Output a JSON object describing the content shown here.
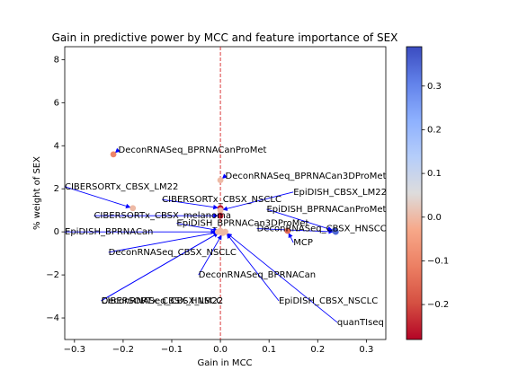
{
  "chart_data": {
    "type": "scatter",
    "title": "Gain in predictive power by MCC and feature importance of SEX",
    "xlabel": "Gain in MCC",
    "ylabel": "% weight of SEX",
    "xlim": [
      -0.32,
      0.34
    ],
    "ylim": [
      -5.0,
      8.6
    ],
    "xticks": [
      -0.3,
      -0.2,
      -0.1,
      0.0,
      0.1,
      0.2,
      0.3
    ],
    "xtick_labels": [
      "−0.3",
      "−0.2",
      "−0.1",
      "0.0",
      "0.1",
      "0.2",
      "0.3"
    ],
    "yticks": [
      -4,
      -2,
      0,
      2,
      4,
      6,
      8
    ],
    "ytick_labels": [
      "−4",
      "−2",
      "0",
      "2",
      "4",
      "6",
      "8"
    ],
    "reference_line": {
      "x": 0.0,
      "style": "dashed",
      "color": "#d62728"
    },
    "grid": false,
    "colorbar": {
      "colormap": "coolwarm_r",
      "range": [
        -0.28,
        0.39
      ],
      "ticks": [
        -0.2,
        -0.1,
        0.0,
        0.1,
        0.2,
        0.3
      ],
      "tick_labels": [
        "−0.2",
        "−0.1",
        "0.0",
        "0.1",
        "0.2",
        "0.3"
      ]
    },
    "points": [
      {
        "label": "DeconRNASeq_BPRNACanProMet",
        "x": -0.22,
        "y": 3.6,
        "c": -0.1,
        "tx": -0.21,
        "ty": 3.8
      },
      {
        "label": "DeconRNASeq_BPRNACan3DProMet",
        "x": 0.0,
        "y": 2.4,
        "c": 0.0,
        "tx": 0.01,
        "ty": 2.6
      },
      {
        "label": "CIBERSORTx_CBSX_LM22",
        "x": -0.18,
        "y": 1.1,
        "c": 0.0,
        "tx": -0.32,
        "ty": 2.1
      },
      {
        "label": "CIBERSORTx_CBSX_NSCLC",
        "x": 0.0,
        "y": 1.1,
        "c": -0.27,
        "tx": -0.12,
        "ty": 1.5
      },
      {
        "label": "EpiDISH_CBSX_LM22",
        "x": 0.0,
        "y": 1.0,
        "c": 0.0,
        "tx": 0.15,
        "ty": 1.85
      },
      {
        "label": "CIBERSORTx_CBSX_melanoma",
        "x": 0.0,
        "y": 0.75,
        "c": -0.25,
        "tx": -0.26,
        "ty": 0.75
      },
      {
        "label": "EpiDISH_BPRNACanProMet",
        "x": 0.235,
        "y": 0.05,
        "c": 0.39,
        "tx": 0.095,
        "ty": 1.05
      },
      {
        "label": "EpiDISH_BPRNACan3DProMet",
        "x": 0.0,
        "y": 0.05,
        "c": 0.0,
        "tx": -0.09,
        "ty": 0.4
      },
      {
        "label": "EpiDISH_BPRNACan",
        "x": -0.005,
        "y": 0.0,
        "c": 0.0,
        "tx": -0.32,
        "ty": 0.0
      },
      {
        "label": "DeconRNASeq_CBSX_HNSCC",
        "x": 0.237,
        "y": 0.0,
        "c": 0.35,
        "tx": 0.075,
        "ty": 0.15
      },
      {
        "label": "MCP",
        "x": 0.138,
        "y": 0.05,
        "c": -0.15,
        "tx": 0.15,
        "ty": -0.5
      },
      {
        "label": "DeconRNASeq_CBSX_NSCLC",
        "x": 0.0,
        "y": 0.0,
        "c": 0.0,
        "tx": -0.23,
        "ty": -0.95
      },
      {
        "label": "DeconRNASeq_BPRNACan",
        "x": 0.005,
        "y": -0.05,
        "c": 0.0,
        "tx": -0.045,
        "ty": -2.0
      },
      {
        "label": "CIBERSORTx_CBSX_HNSCC",
        "x": 0.0,
        "y": 0.0,
        "c": 0.0,
        "tx": -0.245,
        "ty": -3.2
      },
      {
        "label": "DeconRNASeq_CBSX_LM22",
        "x": 0.0,
        "y": 0.0,
        "c": 0.0,
        "tx": -0.245,
        "ty": -3.2
      },
      {
        "label": "EpiDISH_CBSX_NSCLC",
        "x": 0.01,
        "y": 0.0,
        "c": 0.0,
        "tx": 0.12,
        "ty": -3.2
      },
      {
        "label": "quanTIseq",
        "x": 0.01,
        "y": 0.0,
        "c": 0.0,
        "tx": 0.24,
        "ty": -4.2
      }
    ]
  }
}
